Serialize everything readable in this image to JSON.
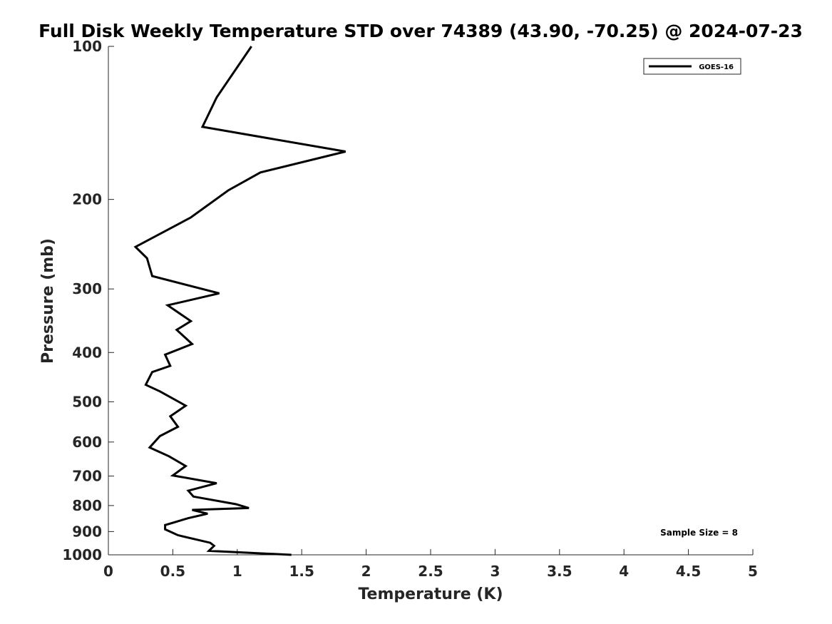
{
  "chart_data": {
    "type": "line",
    "title": "Full Disk Weekly Temperature STD over 74389 (43.90, -70.25) @ 2024-07-23",
    "xlabel": "Temperature (K)",
    "ylabel": "Pressure (mb)",
    "xlim": [
      0,
      5
    ],
    "ylim": [
      1000,
      100
    ],
    "yscale": "log",
    "y_reversed": true,
    "xticks": [
      0,
      0.5,
      1,
      1.5,
      2,
      2.5,
      3,
      3.5,
      4,
      4.5,
      5
    ],
    "xtick_labels": [
      "0",
      "0.5",
      "1",
      "1.5",
      "2",
      "2.5",
      "3",
      "3.5",
      "4",
      "4.5",
      "5"
    ],
    "yticks": [
      100,
      200,
      300,
      400,
      500,
      600,
      700,
      800,
      900,
      1000
    ],
    "ytick_labels": [
      "100",
      "200",
      "300",
      "400",
      "500",
      "600",
      "700",
      "800",
      "900",
      "1000"
    ],
    "grid": false,
    "legend_position": "top-right",
    "annotation": "Sample Size = 8",
    "series": [
      {
        "name": "GOES-16",
        "color": "#000000",
        "temperature": [
          1.11,
          0.84,
          0.73,
          1.84,
          1.18,
          0.93,
          0.64,
          0.21,
          0.3,
          0.34,
          0.86,
          0.46,
          0.64,
          0.53,
          0.65,
          0.44,
          0.48,
          0.34,
          0.29,
          0.4,
          0.6,
          0.48,
          0.54,
          0.4,
          0.32,
          0.47,
          0.6,
          0.5,
          0.84,
          0.62,
          0.66,
          0.99,
          1.09,
          0.65,
          0.77,
          0.62,
          0.44,
          0.44,
          0.54,
          0.79,
          0.82,
          0.78,
          1.42
        ],
        "pressure": [
          100,
          126,
          144,
          161,
          177,
          192,
          217,
          248,
          261,
          283,
          306,
          323,
          347,
          361,
          385,
          404,
          425,
          437,
          463,
          477,
          509,
          534,
          560,
          584,
          615,
          640,
          669,
          698,
          723,
          748,
          768,
          795,
          809,
          816,
          830,
          847,
          874,
          891,
          915,
          947,
          960,
          982,
          1000
        ]
      }
    ]
  }
}
